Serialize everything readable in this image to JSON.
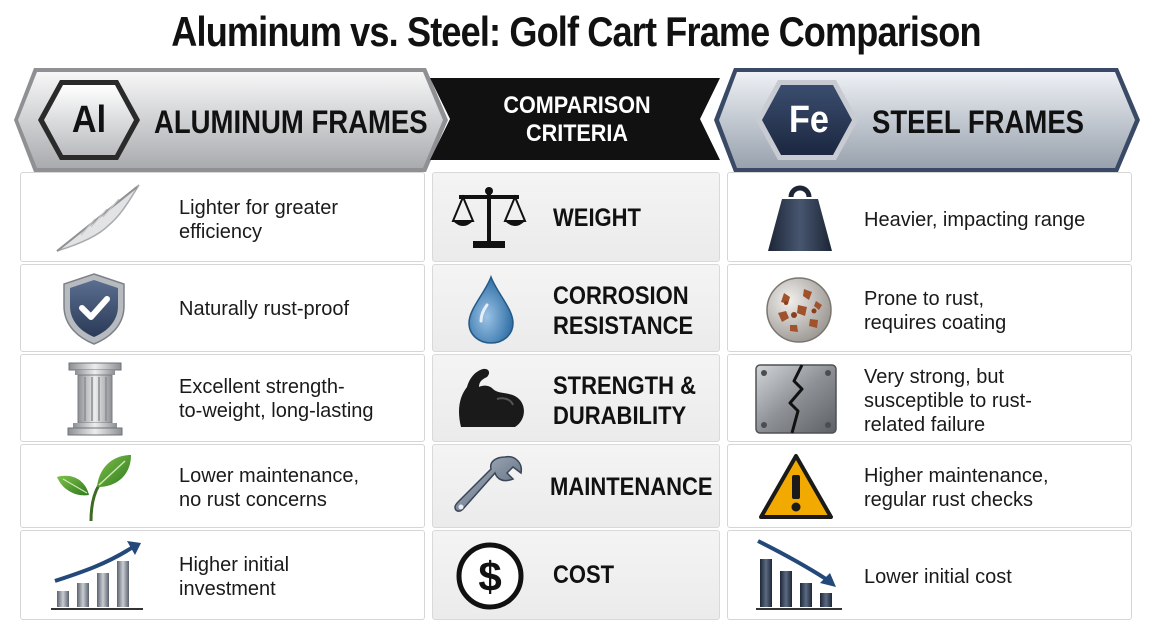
{
  "title": "Aluminum vs. Steel: Golf Cart Frame Comparison",
  "headers": {
    "aluminum": {
      "symbol": "Al",
      "label": "ALUMINUM FRAMES"
    },
    "criteria": {
      "line1": "COMPARISON",
      "line2": "CRITERIA"
    },
    "steel": {
      "symbol": "Fe",
      "label": "STEEL FRAMES"
    }
  },
  "rows": [
    {
      "criterion": [
        "WEIGHT"
      ],
      "aluminum": [
        "Lighter for greater",
        "efficiency"
      ],
      "steel": [
        "Heavier, impacting range"
      ],
      "icons": {
        "aluminum": "feather-icon",
        "criterion": "scale-icon",
        "steel": "weight-icon"
      }
    },
    {
      "criterion": [
        "CORROSION",
        "RESISTANCE"
      ],
      "aluminum": [
        "Naturally rust-proof"
      ],
      "steel": [
        "Prone to rust,",
        "requires coating"
      ],
      "icons": {
        "aluminum": "shield-check-icon",
        "criterion": "water-drop-icon",
        "steel": "rusty-ball-icon"
      }
    },
    {
      "criterion": [
        "STRENGTH &",
        "DURABILITY"
      ],
      "aluminum": [
        "Excellent strength-",
        "to-weight, long-lasting"
      ],
      "steel": [
        "Very strong, but",
        "susceptible to rust-",
        "related failure"
      ],
      "icons": {
        "aluminum": "column-icon",
        "criterion": "flexed-arm-icon",
        "steel": "cracked-plate-icon"
      }
    },
    {
      "criterion": [
        "MAINTENANCE"
      ],
      "aluminum": [
        "Lower maintenance,",
        "no rust concerns"
      ],
      "steel": [
        "Higher maintenance,",
        "regular rust checks"
      ],
      "icons": {
        "aluminum": "leaf-icon",
        "criterion": "wrench-icon",
        "steel": "warning-icon"
      }
    },
    {
      "criterion": [
        "COST"
      ],
      "aluminum": [
        "Higher initial",
        "investment"
      ],
      "steel": [
        "Lower initial cost"
      ],
      "icons": {
        "aluminum": "rising-chart-icon",
        "criterion": "dollar-icon",
        "steel": "falling-chart-icon"
      }
    }
  ],
  "colors": {
    "criteria_banner": "#111111",
    "steel_badge": "#22324e",
    "rust": "#a0522d",
    "warning": "#f2a900"
  }
}
